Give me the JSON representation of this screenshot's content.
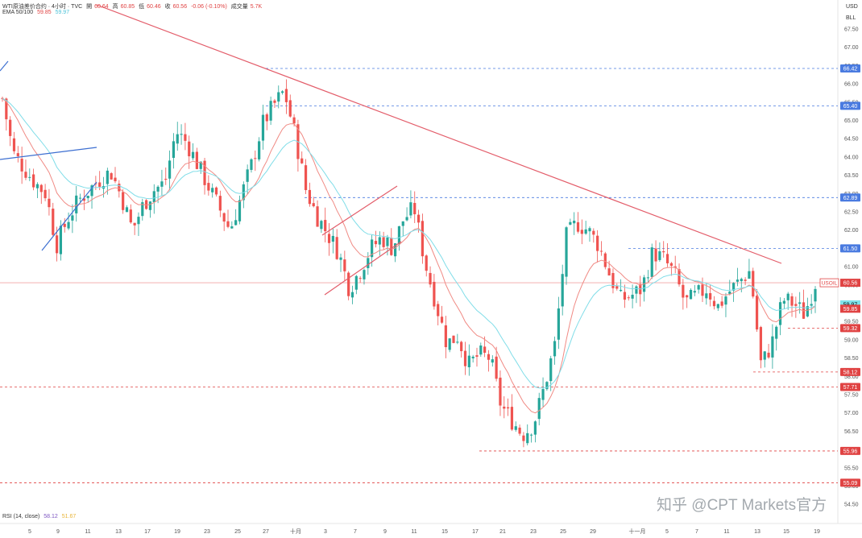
{
  "header": {
    "symbol": "WTI原油差价合约 · 4小时 · TVC",
    "open_label": "開",
    "open_val": "60.64",
    "high_label": "高",
    "high_val": "60.85",
    "low_label": "低",
    "low_val": "60.46",
    "close_label": "收",
    "close_val": "60.56",
    "change": "-0.06 (-0.10%)",
    "volume_label": "成交量",
    "volume_val": "5.7K"
  },
  "ema_legend": {
    "label": "EMA 50/100",
    "ema50": "59.85",
    "ema100": "59.97"
  },
  "rsi_legend": {
    "label": "RSI (14, close)",
    "rsi": "58.12",
    "rsi_ma": "51.67"
  },
  "watermark": "知乎 @CPT Markets官方",
  "colors": {
    "up": "#26a69a",
    "down": "#ef5350",
    "ema50": "#f08a84",
    "ema100": "#80dde8",
    "trend_red": "#e35d6a",
    "channel_blue": "#3d6fd1",
    "support_red": "#e04343",
    "resistance_blue": "#4a7be0",
    "price_label_bg": "#e04343"
  },
  "chart_data": {
    "type": "candlestick",
    "currency_label": "USD",
    "unit_label": "BLL",
    "y_ticks": [
      "67.50",
      "67.00",
      "66.50",
      "66.00",
      "65.50",
      "65.00",
      "64.50",
      "64.00",
      "63.50",
      "63.00",
      "62.50",
      "62.00",
      "61.50",
      "61.00",
      "60.50",
      "60.00",
      "59.50",
      "59.00",
      "58.50",
      "58.00",
      "57.50",
      "57.00",
      "56.50",
      "56.00",
      "55.50",
      "55.00",
      "54.50"
    ],
    "ylim": [
      54.4,
      67.8
    ],
    "x_ticks": [
      "5",
      "9",
      "11",
      "13",
      "17",
      "19",
      "23",
      "25",
      "27",
      "十月",
      "3",
      "7",
      "9",
      "11",
      "15",
      "17",
      "21",
      "23",
      "25",
      "29",
      "十一月",
      "5",
      "7",
      "11",
      "13",
      "15",
      "19"
    ],
    "resistance_levels": [
      "66.42",
      "65.40",
      "62.89",
      "61.50"
    ],
    "support_levels": [
      "59.32",
      "58.12",
      "57.71",
      "55.96",
      "55.09"
    ],
    "current_price": {
      "symbol": "USOIL",
      "value": "60.56"
    },
    "ema_values": {
      "ema50": "59.85",
      "ema100": "59.97"
    },
    "close_path": [
      65.6,
      64.1,
      63.7,
      63.3,
      63.0,
      61.6,
      62.3,
      62.8,
      63.1,
      63.4,
      63.6,
      62.9,
      62.0,
      62.7,
      63.1,
      63.3,
      64.7,
      64.4,
      63.8,
      63.2,
      62.6,
      62.0,
      62.9,
      63.8,
      64.9,
      65.4,
      65.8,
      64.6,
      63.1,
      62.4,
      61.9,
      61.4,
      60.4,
      60.9,
      61.5,
      61.8,
      61.5,
      62.3,
      62.6,
      61.1,
      60.0,
      58.9,
      59.1,
      58.3,
      58.6,
      58.5,
      57.2,
      56.8,
      56.4,
      56.7,
      57.7,
      58.9,
      61.8,
      62.2,
      62.0,
      61.6,
      60.8,
      60.1,
      60.2,
      60.4,
      61.4,
      61.2,
      60.8,
      60.0,
      60.2,
      60.4,
      59.9,
      60.3,
      60.6,
      60.9,
      58.3,
      58.9,
      60.1,
      60.0,
      59.7,
      60.56
    ],
    "trendlines": [
      "red descending resistance from top-left to right",
      "blue rising channel early (5-11)",
      "red rising channel (3-9 十月)"
    ]
  }
}
